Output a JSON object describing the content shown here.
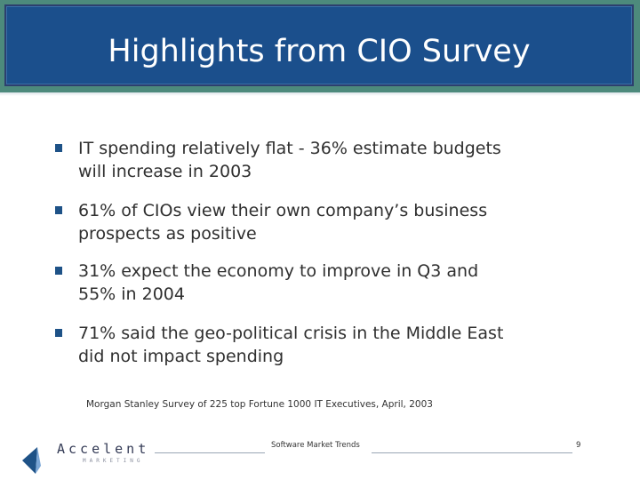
{
  "slide": {
    "title": "Highlights from CIO Survey",
    "bullets": [
      {
        "line1": "IT spending relatively flat - 36% estimate budgets",
        "line2": "will increase in 2003"
      },
      {
        "line1": "61% of CIOs view their own company’s business",
        "line2": "prospects as positive"
      },
      {
        "line1": "31% expect the economy to improve in Q3 and",
        "line2": "55% in 2004"
      },
      {
        "line1": "71% said the geo-political crisis in the Middle East",
        "line2": "did not impact spending"
      }
    ],
    "source": "Morgan Stanley Survey of 225 top Fortune 1000 IT Executives, April, 2003"
  },
  "footer": {
    "logo_name": "Accelent",
    "logo_sub": "MARKETING",
    "center_text": "Software Market Trends",
    "page_number": "9"
  },
  "colors": {
    "title_bg": "#1b4f8c",
    "title_border": "#4d8a7c",
    "bullet_marker": "#1e5287",
    "text": "#2f2f2f"
  }
}
